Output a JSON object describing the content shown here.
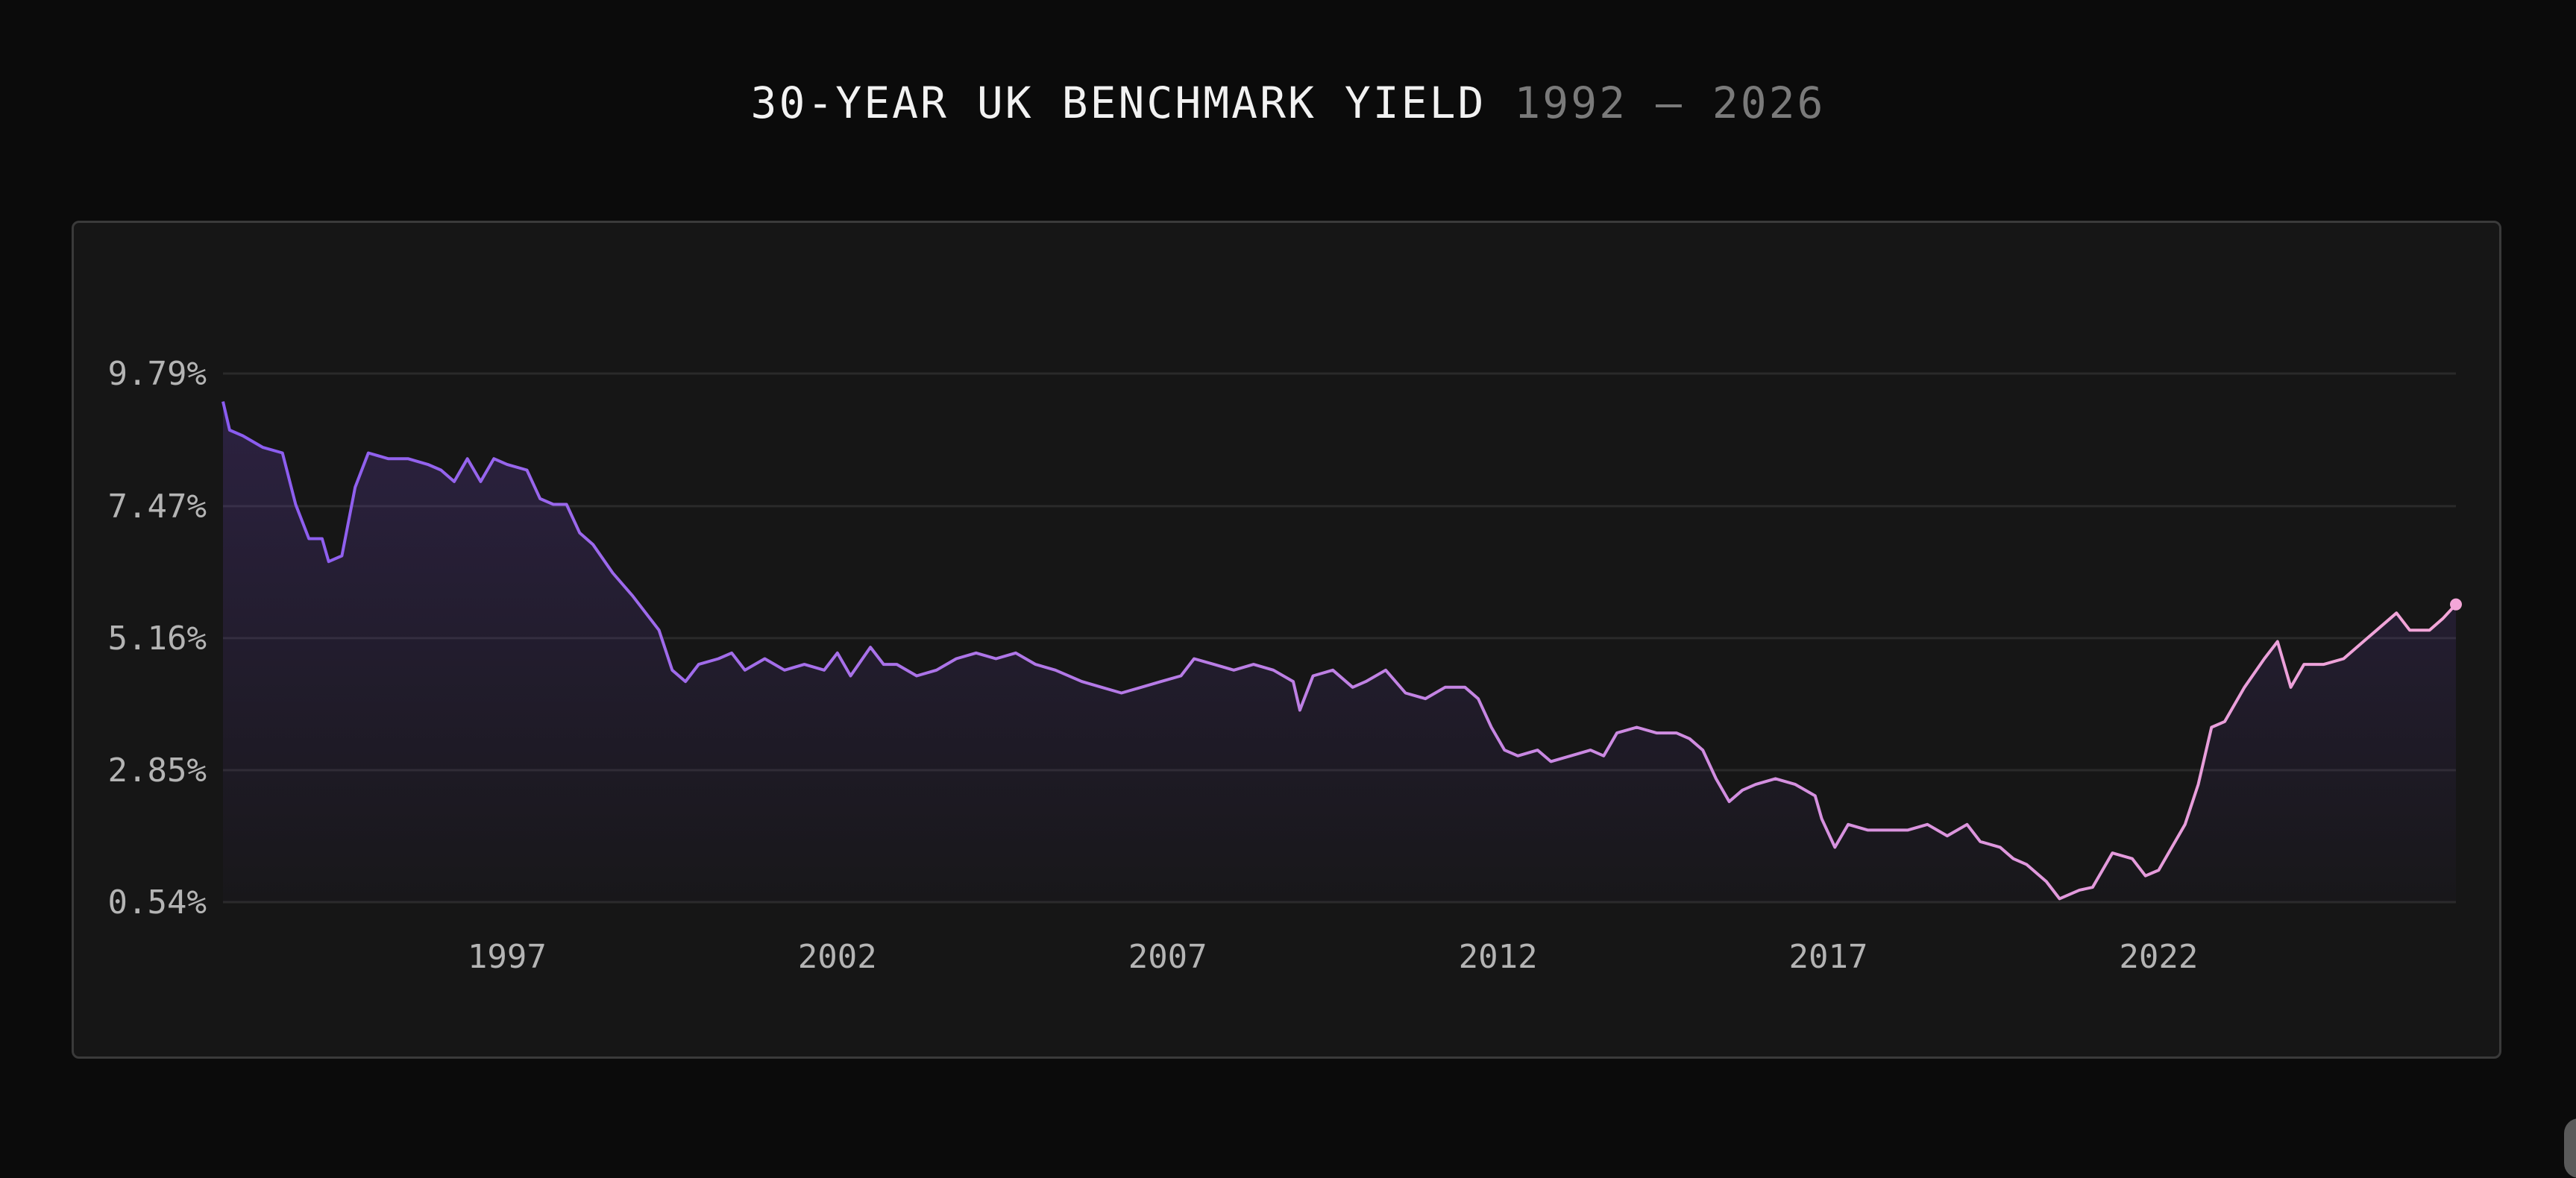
{
  "header": {
    "title": "30-YEAR UK BENCHMARK YIELD",
    "range": "1992 — 2026"
  },
  "colors": {
    "background": "#0b0b0b",
    "panel": "#161616",
    "line_start": "#8a5cf0",
    "line_end": "#f4a6d8",
    "end_marker": "#f4a6d8"
  },
  "chart_data": {
    "type": "line",
    "title": "30-YEAR UK BENCHMARK YIELD",
    "subtitle": "1992 — 2026",
    "xlabel": "",
    "ylabel": "",
    "xlim": [
      1992.7,
      2026.5
    ],
    "ylim": [
      0.54,
      9.79
    ],
    "x_ticks": [
      1997,
      2002,
      2007,
      2012,
      2017,
      2022
    ],
    "x_tick_labels": [
      "1997",
      "2002",
      "2007",
      "2012",
      "2017",
      "2022"
    ],
    "y_ticks": [
      0.54,
      2.85,
      5.16,
      7.47,
      9.79
    ],
    "y_tick_labels": [
      "0.54%",
      "2.85%",
      "5.16%",
      "7.47%",
      "9.79%"
    ],
    "grid": "horizontal",
    "legend": "none",
    "end_marker": true,
    "series": [
      {
        "points": [
          [
            1992.7,
            9.3
          ],
          [
            1992.8,
            8.8
          ],
          [
            1993.0,
            8.7
          ],
          [
            1993.3,
            8.5
          ],
          [
            1993.6,
            8.4
          ],
          [
            1993.8,
            7.5
          ],
          [
            1994.0,
            6.9
          ],
          [
            1994.2,
            6.9
          ],
          [
            1994.3,
            6.5
          ],
          [
            1994.5,
            6.6
          ],
          [
            1994.7,
            7.8
          ],
          [
            1994.9,
            8.4
          ],
          [
            1995.2,
            8.3
          ],
          [
            1995.5,
            8.3
          ],
          [
            1995.8,
            8.2
          ],
          [
            1996.0,
            8.1
          ],
          [
            1996.2,
            7.9
          ],
          [
            1996.4,
            8.3
          ],
          [
            1996.6,
            7.9
          ],
          [
            1996.8,
            8.3
          ],
          [
            1997.0,
            8.2
          ],
          [
            1997.3,
            8.1
          ],
          [
            1997.5,
            7.6
          ],
          [
            1997.7,
            7.5
          ],
          [
            1997.9,
            7.5
          ],
          [
            1998.1,
            7.0
          ],
          [
            1998.3,
            6.8
          ],
          [
            1998.6,
            6.3
          ],
          [
            1998.9,
            5.9
          ],
          [
            1999.1,
            5.6
          ],
          [
            1999.3,
            5.3
          ],
          [
            1999.5,
            4.6
          ],
          [
            1999.7,
            4.4
          ],
          [
            1999.9,
            4.7
          ],
          [
            2000.2,
            4.8
          ],
          [
            2000.4,
            4.9
          ],
          [
            2000.6,
            4.6
          ],
          [
            2000.9,
            4.8
          ],
          [
            2001.2,
            4.6
          ],
          [
            2001.5,
            4.7
          ],
          [
            2001.8,
            4.6
          ],
          [
            2002.0,
            4.9
          ],
          [
            2002.2,
            4.5
          ],
          [
            2002.5,
            5.0
          ],
          [
            2002.7,
            4.7
          ],
          [
            2002.9,
            4.7
          ],
          [
            2003.2,
            4.5
          ],
          [
            2003.5,
            4.6
          ],
          [
            2003.8,
            4.8
          ],
          [
            2004.1,
            4.9
          ],
          [
            2004.4,
            4.8
          ],
          [
            2004.7,
            4.9
          ],
          [
            2005.0,
            4.7
          ],
          [
            2005.3,
            4.6
          ],
          [
            2005.7,
            4.4
          ],
          [
            2006.0,
            4.3
          ],
          [
            2006.3,
            4.2
          ],
          [
            2006.6,
            4.3
          ],
          [
            2006.9,
            4.4
          ],
          [
            2007.2,
            4.5
          ],
          [
            2007.4,
            4.8
          ],
          [
            2007.7,
            4.7
          ],
          [
            2008.0,
            4.6
          ],
          [
            2008.3,
            4.7
          ],
          [
            2008.6,
            4.6
          ],
          [
            2008.9,
            4.4
          ],
          [
            2009.0,
            3.9
          ],
          [
            2009.2,
            4.5
          ],
          [
            2009.5,
            4.6
          ],
          [
            2009.8,
            4.3
          ],
          [
            2010.0,
            4.4
          ],
          [
            2010.3,
            4.6
          ],
          [
            2010.6,
            4.2
          ],
          [
            2010.9,
            4.1
          ],
          [
            2011.2,
            4.3
          ],
          [
            2011.5,
            4.3
          ],
          [
            2011.7,
            4.1
          ],
          [
            2011.9,
            3.6
          ],
          [
            2012.1,
            3.2
          ],
          [
            2012.3,
            3.1
          ],
          [
            2012.6,
            3.2
          ],
          [
            2012.8,
            3.0
          ],
          [
            2013.1,
            3.1
          ],
          [
            2013.4,
            3.2
          ],
          [
            2013.6,
            3.1
          ],
          [
            2013.8,
            3.5
          ],
          [
            2014.1,
            3.6
          ],
          [
            2014.4,
            3.5
          ],
          [
            2014.7,
            3.5
          ],
          [
            2014.9,
            3.4
          ],
          [
            2015.1,
            3.2
          ],
          [
            2015.3,
            2.7
          ],
          [
            2015.5,
            2.3
          ],
          [
            2015.7,
            2.5
          ],
          [
            2015.9,
            2.6
          ],
          [
            2016.2,
            2.7
          ],
          [
            2016.5,
            2.6
          ],
          [
            2016.8,
            2.4
          ],
          [
            2016.9,
            2.0
          ],
          [
            2017.1,
            1.5
          ],
          [
            2017.3,
            1.9
          ],
          [
            2017.6,
            1.8
          ],
          [
            2017.9,
            1.8
          ],
          [
            2018.2,
            1.8
          ],
          [
            2018.5,
            1.9
          ],
          [
            2018.8,
            1.7
          ],
          [
            2019.1,
            1.9
          ],
          [
            2019.3,
            1.6
          ],
          [
            2019.6,
            1.5
          ],
          [
            2019.8,
            1.3
          ],
          [
            2020.0,
            1.2
          ],
          [
            2020.3,
            0.9
          ],
          [
            2020.5,
            0.6
          ],
          [
            2020.8,
            0.75
          ],
          [
            2021.0,
            0.8
          ],
          [
            2021.3,
            1.4
          ],
          [
            2021.6,
            1.3
          ],
          [
            2021.8,
            1.0
          ],
          [
            2022.0,
            1.1
          ],
          [
            2022.2,
            1.5
          ],
          [
            2022.4,
            1.9
          ],
          [
            2022.6,
            2.6
          ],
          [
            2022.8,
            3.6
          ],
          [
            2023.0,
            3.7
          ],
          [
            2023.3,
            4.3
          ],
          [
            2023.6,
            4.8
          ],
          [
            2023.8,
            5.1
          ],
          [
            2024.0,
            4.3
          ],
          [
            2024.2,
            4.7
          ],
          [
            2024.5,
            4.7
          ],
          [
            2024.8,
            4.8
          ],
          [
            2025.0,
            5.0
          ],
          [
            2025.3,
            5.3
          ],
          [
            2025.6,
            5.6
          ],
          [
            2025.8,
            5.3
          ],
          [
            2026.1,
            5.3
          ],
          [
            2026.3,
            5.5
          ],
          [
            2026.5,
            5.75
          ]
        ]
      }
    ]
  }
}
